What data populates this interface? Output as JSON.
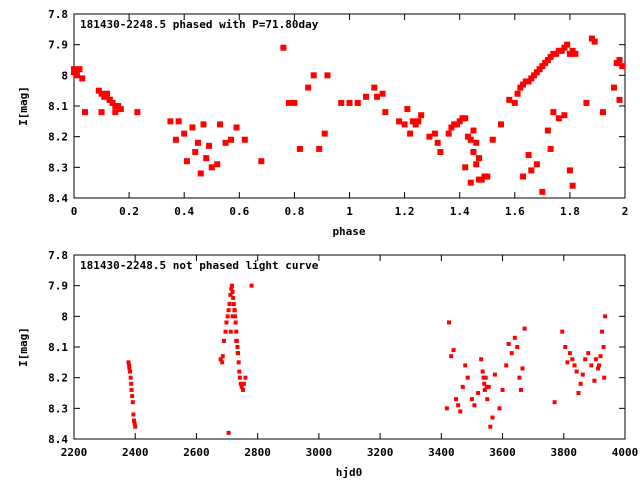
{
  "chart_data": [
    {
      "type": "scatter",
      "title": "181430-2248.5 phased with P=71.80day",
      "xlabel": "phase",
      "ylabel": "I[mag]",
      "xlim": [
        0,
        2
      ],
      "ylim": [
        7.8,
        8.4
      ],
      "y_inverted": true,
      "xticks": [
        0,
        0.2,
        0.4,
        0.6,
        0.8,
        1,
        1.2,
        1.4,
        1.6,
        1.8,
        2
      ],
      "yticks": [
        7.8,
        7.9,
        8,
        8.1,
        8.2,
        8.3,
        8.4
      ],
      "marker_color": "#ff0000",
      "series": [
        {
          "x": [
            0.0,
            0.01,
            0.02,
            0.03,
            0.01,
            0.0,
            0.04,
            0.09,
            0.1,
            0.11,
            0.12,
            0.13,
            0.14,
            0.15,
            0.16,
            0.17,
            0.13,
            0.15,
            0.1,
            0.23,
            0.35,
            0.37,
            0.38,
            0.4,
            0.41,
            0.43,
            0.44,
            0.45,
            0.46,
            0.47,
            0.48,
            0.49,
            0.5,
            0.52,
            0.53,
            0.55,
            0.57,
            0.59,
            0.62,
            0.68,
            0.76,
            0.78,
            0.8,
            0.82,
            0.85,
            0.87,
            0.89,
            0.91,
            0.92,
            0.97,
            1.0,
            1.03,
            1.06,
            1.09,
            1.1,
            1.12,
            1.13,
            1.18,
            1.2,
            1.21,
            1.22,
            1.23,
            1.24,
            1.25,
            1.26,
            1.29,
            1.31,
            1.32,
            1.33,
            1.36,
            1.37,
            1.38,
            1.39,
            1.4,
            1.41,
            1.42,
            1.43,
            1.44,
            1.45,
            1.46,
            1.47,
            1.48,
            1.49,
            1.5,
            1.42,
            1.44,
            1.46,
            1.45,
            1.47,
            1.52,
            1.55,
            1.58,
            1.6,
            1.61,
            1.62,
            1.63,
            1.64,
            1.65,
            1.66,
            1.67,
            1.68,
            1.69,
            1.7,
            1.71,
            1.72,
            1.73,
            1.74,
            1.75,
            1.76,
            1.77,
            1.78,
            1.79,
            1.8,
            1.81,
            1.82,
            1.66,
            1.68,
            1.7,
            1.72,
            1.74,
            1.76,
            1.78,
            1.63,
            1.65,
            1.73,
            1.8,
            1.81,
            1.86,
            1.88,
            1.89,
            1.92,
            1.96,
            1.97,
            1.98,
            1.99,
            1.98
          ],
          "y": [
            7.98,
            7.99,
            7.98,
            8.01,
            8.0,
            7.99,
            8.12,
            8.05,
            8.06,
            8.07,
            8.06,
            8.08,
            8.09,
            8.1,
            8.1,
            8.11,
            8.08,
            8.12,
            8.12,
            8.12,
            8.15,
            8.21,
            8.15,
            8.19,
            8.28,
            8.17,
            8.25,
            8.22,
            8.32,
            8.16,
            8.27,
            8.23,
            8.3,
            8.29,
            8.16,
            8.22,
            8.21,
            8.17,
            8.21,
            8.28,
            7.91,
            8.09,
            8.09,
            8.24,
            8.04,
            8.0,
            8.24,
            8.19,
            8.0,
            8.09,
            8.09,
            8.09,
            8.07,
            8.04,
            8.07,
            8.06,
            8.12,
            8.15,
            8.16,
            8.11,
            8.19,
            8.15,
            8.16,
            8.15,
            8.13,
            8.2,
            8.19,
            8.22,
            8.25,
            8.19,
            8.17,
            8.16,
            8.16,
            8.15,
            8.14,
            8.14,
            8.2,
            8.35,
            8.25,
            8.29,
            8.34,
            8.34,
            8.33,
            8.33,
            8.3,
            8.21,
            8.22,
            8.18,
            8.27,
            8.21,
            8.16,
            8.08,
            8.09,
            8.06,
            8.04,
            8.03,
            8.02,
            8.02,
            8.01,
            8.0,
            7.99,
            7.98,
            7.97,
            7.96,
            7.95,
            7.94,
            7.93,
            7.93,
            7.92,
            7.92,
            7.91,
            7.9,
            7.93,
            7.92,
            7.93,
            8.31,
            8.29,
            8.38,
            8.18,
            8.12,
            8.14,
            8.13,
            8.33,
            8.26,
            8.24,
            8.31,
            8.36,
            8.09,
            7.88,
            7.89,
            8.12,
            8.04,
            7.96,
            7.95,
            7.97,
            8.08
          ]
        }
      ]
    },
    {
      "type": "scatter",
      "title": "181430-2248.5 not phased light curve",
      "xlabel": "hjd0",
      "ylabel": "I[mag]",
      "xlim": [
        2200,
        4000
      ],
      "ylim": [
        7.8,
        8.4
      ],
      "y_inverted": true,
      "xticks": [
        2200,
        2400,
        2600,
        2800,
        3000,
        3200,
        3400,
        3600,
        3800,
        4000
      ],
      "yticks": [
        7.8,
        7.9,
        8,
        8.1,
        8.2,
        8.3,
        8.4
      ],
      "marker_color": "#ff0000",
      "series": [
        {
          "x": [
            2378,
            2380,
            2381,
            2383,
            2385,
            2387,
            2388,
            2390,
            2392,
            2394,
            2396,
            2398,
            2400,
            2679,
            2684,
            2686,
            2690,
            2695,
            2698,
            2702,
            2705,
            2708,
            2711,
            2714,
            2716,
            2718,
            2720,
            2722,
            2724,
            2726,
            2728,
            2730,
            2732,
            2734,
            2736,
            2738,
            2740,
            2742,
            2745,
            2748,
            2752,
            2755,
            2760,
            2780,
            2705,
            2712,
            2718,
            2725,
            2730,
            2735,
            3418,
            3425,
            3432,
            3440,
            3448,
            3455,
            3462,
            3470,
            3478,
            3486,
            3500,
            3508,
            3520,
            3530,
            3535,
            3538,
            3540,
            3542,
            3545,
            3548,
            3550,
            3555,
            3560,
            3567,
            3575,
            3590,
            3600,
            3612,
            3620,
            3630,
            3640,
            3648,
            3655,
            3660,
            3665,
            3672,
            3770,
            3795,
            3805,
            3812,
            3820,
            3828,
            3835,
            3842,
            3848,
            3855,
            3862,
            3870,
            3880,
            3890,
            3900,
            3905,
            3912,
            3920,
            3925,
            3930,
            3935,
            3915,
            3932
          ],
          "y": [
            8.15,
            8.16,
            8.17,
            8.18,
            8.2,
            8.22,
            8.24,
            8.26,
            8.28,
            8.32,
            8.34,
            8.35,
            8.36,
            8.14,
            8.15,
            8.13,
            8.08,
            8.05,
            8.02,
            8.0,
            7.98,
            7.96,
            7.93,
            7.91,
            7.9,
            7.92,
            7.94,
            7.96,
            7.98,
            8.0,
            8.02,
            8.05,
            8.08,
            8.1,
            8.12,
            8.15,
            8.18,
            8.2,
            8.22,
            8.23,
            8.24,
            8.22,
            8.2,
            7.9,
            8.38,
            8.05,
            8.0,
            7.98,
            8.08,
            8.12,
            8.3,
            8.02,
            8.13,
            8.11,
            8.27,
            8.29,
            8.31,
            8.23,
            8.16,
            8.2,
            8.27,
            8.29,
            8.25,
            8.14,
            8.18,
            8.2,
            8.22,
            8.24,
            8.2,
            8.23,
            8.27,
            8.23,
            8.36,
            8.33,
            8.19,
            8.3,
            8.24,
            8.16,
            8.09,
            8.12,
            8.07,
            8.1,
            8.2,
            8.24,
            8.17,
            8.04,
            8.28,
            8.05,
            8.1,
            8.15,
            8.12,
            8.14,
            8.16,
            8.18,
            8.25,
            8.22,
            8.19,
            8.14,
            8.12,
            8.16,
            8.21,
            8.14,
            8.17,
            8.13,
            8.05,
            8.1,
            8.0,
            8.16,
            8.2
          ]
        }
      ]
    }
  ]
}
